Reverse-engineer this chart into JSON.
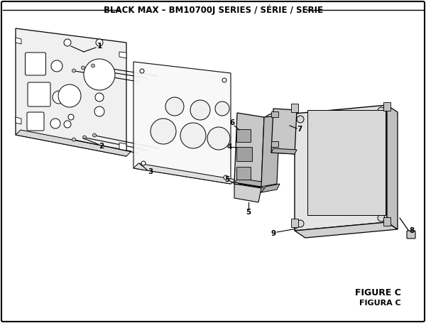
{
  "title": "BLACK MAX – BM10700J SERIES / SÉRIE / SERIE",
  "bg_color": "#ffffff",
  "border_color": "#000000",
  "figure_label": "FIGURE C",
  "figura_label": "FIGURA C",
  "title_fontsize": 8.5,
  "figure_fontsize": 9,
  "figura_fontsize": 8
}
